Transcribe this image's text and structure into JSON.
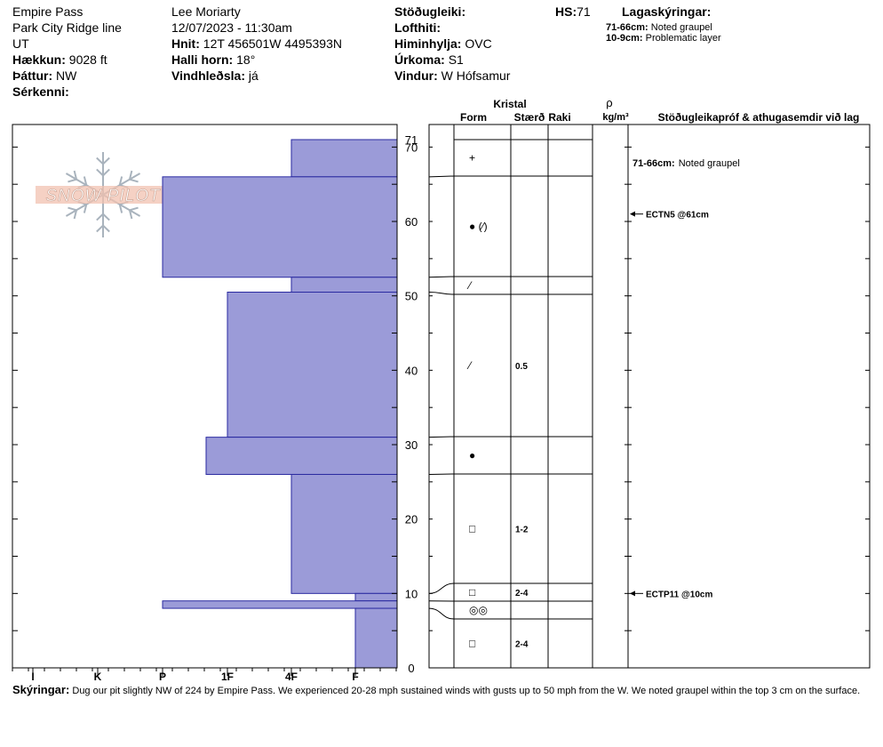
{
  "header": {
    "col1": {
      "location": "Empire Pass",
      "area": "Park City Ridge line",
      "state": "UT",
      "elevation_label": "Hækkun:",
      "elevation": "9028 ft",
      "aspect_label": "Þáttur:",
      "aspect": "NW",
      "specifics_label": "Sérkenni:",
      "specifics": ""
    },
    "col2": {
      "observer": "Lee Moriarty",
      "datetime": "12/07/2023 - 11:30am",
      "coords_label": "Hnit:",
      "coords": "12T 456501W 4495393N",
      "slope_label": "Halli horn:",
      "slope": "18°",
      "wind_loading_label": "Vindhleðsla:",
      "wind_loading": "já"
    },
    "col3": {
      "stability_label": "Stöðugleiki:",
      "stability": "",
      "air_temp_label": "Lofthiti:",
      "air_temp": "",
      "sky_label": "Himinhylja:",
      "sky": "OVC",
      "precip_label": "Úrkoma:",
      "precip": "S1",
      "wind_label": "Vindur:",
      "wind": "W Hófsamur"
    },
    "hs_label": "HS:",
    "hs": "71",
    "legend_title": "Lagaskýringar:",
    "legend": [
      {
        "range": "71-66cm:",
        "text": "Noted graupel"
      },
      {
        "range": "10-9cm:",
        "text": "Problematic layer"
      }
    ]
  },
  "logo": {
    "text": "SNOW PILOT"
  },
  "columns": {
    "crystal": "Kristal",
    "form": "Form",
    "size": "Stærð",
    "moisture": "Raki",
    "rho": "ρ",
    "density_unit": "kg/m³",
    "tests": "Stöðugleikapróf & athugasemdir við lag"
  },
  "annotations": [
    {
      "text": "71-66cm:",
      "note": "Noted graupel"
    }
  ],
  "tests": [
    {
      "text": "ECTN5 @61cm",
      "depth": 61
    },
    {
      "text": "ECTP11 @10cm",
      "depth": 10
    }
  ],
  "chart_data": {
    "type": "bar",
    "orientation": "horizontal",
    "y_range": [
      0,
      71
    ],
    "y_ticks": [
      "0",
      "10",
      "20",
      "30",
      "40",
      "50",
      "60",
      "70"
    ],
    "hardness_scale": [
      "I",
      "K",
      "P",
      "1F",
      "4F",
      "F"
    ],
    "layers": [
      {
        "top": 71,
        "bottom": 66,
        "hardness": "4F",
        "form": "+",
        "size": ""
      },
      {
        "top": 66,
        "bottom": 52.5,
        "hardness": "P",
        "form": "● (⁄)",
        "size": ""
      },
      {
        "top": 52.5,
        "bottom": 50.5,
        "hardness": "4F",
        "form": "⁄",
        "size": ""
      },
      {
        "top": 50.5,
        "bottom": 31,
        "hardness": "1F+",
        "form": "⁄",
        "size": "0.5"
      },
      {
        "top": 31,
        "bottom": 26,
        "hardness": "1F-",
        "form": "●",
        "size": ""
      },
      {
        "top": 26,
        "bottom": 10,
        "hardness": "4F",
        "form": "□",
        "size": "1-2"
      },
      {
        "top": 10,
        "bottom": 9,
        "hardness": "F",
        "form": "□",
        "size": "2-4"
      },
      {
        "top": 9,
        "bottom": 8,
        "hardness": "P",
        "form": "◎◎",
        "size": ""
      },
      {
        "top": 8,
        "bottom": 0,
        "hardness": "F",
        "form": "□",
        "size": "2-4"
      }
    ]
  },
  "comments": {
    "label": "Skýringar:",
    "text": "Dug our pit slightly NW of 224 by Empire Pass. We experienced 20-28 mph sustained winds with gusts up to 50 mph from the W. We noted graupel within the top 3 cm on the surface."
  }
}
